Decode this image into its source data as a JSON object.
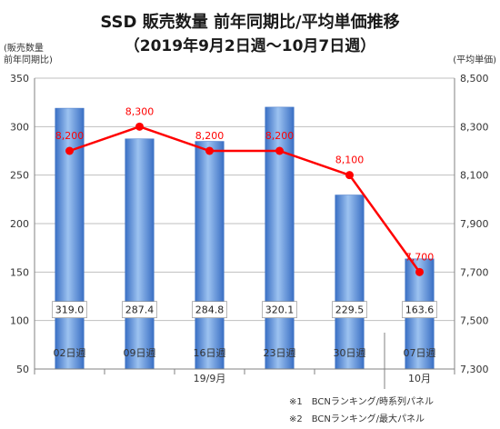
{
  "chart_data": {
    "type": "bar+line",
    "title_line1": "SSD 販売数量 前年同期比/平均単価推移",
    "title_line2": "（2019年9月2日週～10月7日週）",
    "left_axis_title": [
      "(販売数量",
      "前年同期比)"
    ],
    "right_axis_title": "(平均単価)",
    "categories": [
      "02日週",
      "09日週",
      "16日週",
      "23日週",
      "30日週",
      "07日週"
    ],
    "month_groups": [
      {
        "label": "19/9月",
        "span": [
          0,
          4
        ]
      },
      {
        "label": "10月",
        "span": [
          5,
          5
        ]
      }
    ],
    "series": [
      {
        "values": [
          319.0,
          287.4,
          284.8,
          320.1,
          229.5,
          163.6
        ],
        "labels": [
          "319.0",
          "287.4",
          "284.8",
          "320.1",
          "229.5",
          "163.6"
        ],
        "axis": "left",
        "kind": "bar",
        "color": "#5b8fd6"
      },
      {
        "values": [
          8200,
          8300,
          8200,
          8200,
          8100,
          7700
        ],
        "labels": [
          "8,200",
          "8,300",
          "8,200",
          "8,200",
          "8,100",
          "7,700"
        ],
        "axis": "right",
        "kind": "line",
        "color": "#ff0000"
      }
    ],
    "left_axis": {
      "min": 50,
      "max": 350,
      "ticks": [
        50,
        100,
        150,
        200,
        250,
        300,
        350
      ]
    },
    "right_axis": {
      "min": 7300,
      "max": 8500,
      "ticks": [
        "7,300",
        "7,500",
        "7,700",
        "7,900",
        "8,100",
        "8,300",
        "8,500"
      ],
      "tick_values": [
        7300,
        7500,
        7700,
        7900,
        8100,
        8300,
        8500
      ]
    },
    "notes": [
      "※1　BCNランキング/時系列パネル",
      "※2　BCNランキング/最大パネル"
    ]
  }
}
